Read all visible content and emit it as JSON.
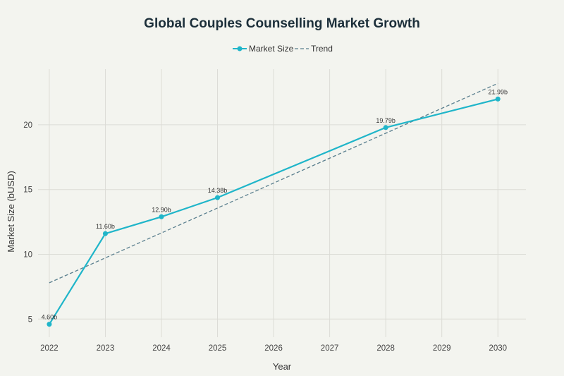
{
  "chart_data": {
    "type": "line",
    "title": "Global Couples Counselling Market Growth",
    "xlabel": "Year",
    "ylabel": "Market Size (bUSD)",
    "x_ticks": [
      "2022",
      "2023",
      "2024",
      "2025",
      "2026",
      "2027",
      "2028",
      "2029",
      "2030"
    ],
    "y_ticks": [
      "5",
      "10",
      "15",
      "20"
    ],
    "xlim": [
      2021.8,
      2030.5
    ],
    "ylim": [
      3.6,
      24.3
    ],
    "grid": true,
    "legend_position": "top-center",
    "series": [
      {
        "name": "Market Size",
        "style": "solid-with-markers",
        "color": "#1fb5c9",
        "x": [
          2022,
          2023,
          2024,
          2025,
          2028,
          2030
        ],
        "values": [
          4.6,
          11.6,
          12.9,
          14.38,
          19.79,
          21.99
        ],
        "labels": [
          "4.60b",
          "11.60b",
          "12.90b",
          "14.38b",
          "19.79b",
          "21.99b"
        ]
      },
      {
        "name": "Trend",
        "style": "dashed",
        "color": "#5a7f8e",
        "x": [
          2022,
          2030
        ],
        "values": [
          7.8,
          23.2
        ]
      }
    ]
  }
}
